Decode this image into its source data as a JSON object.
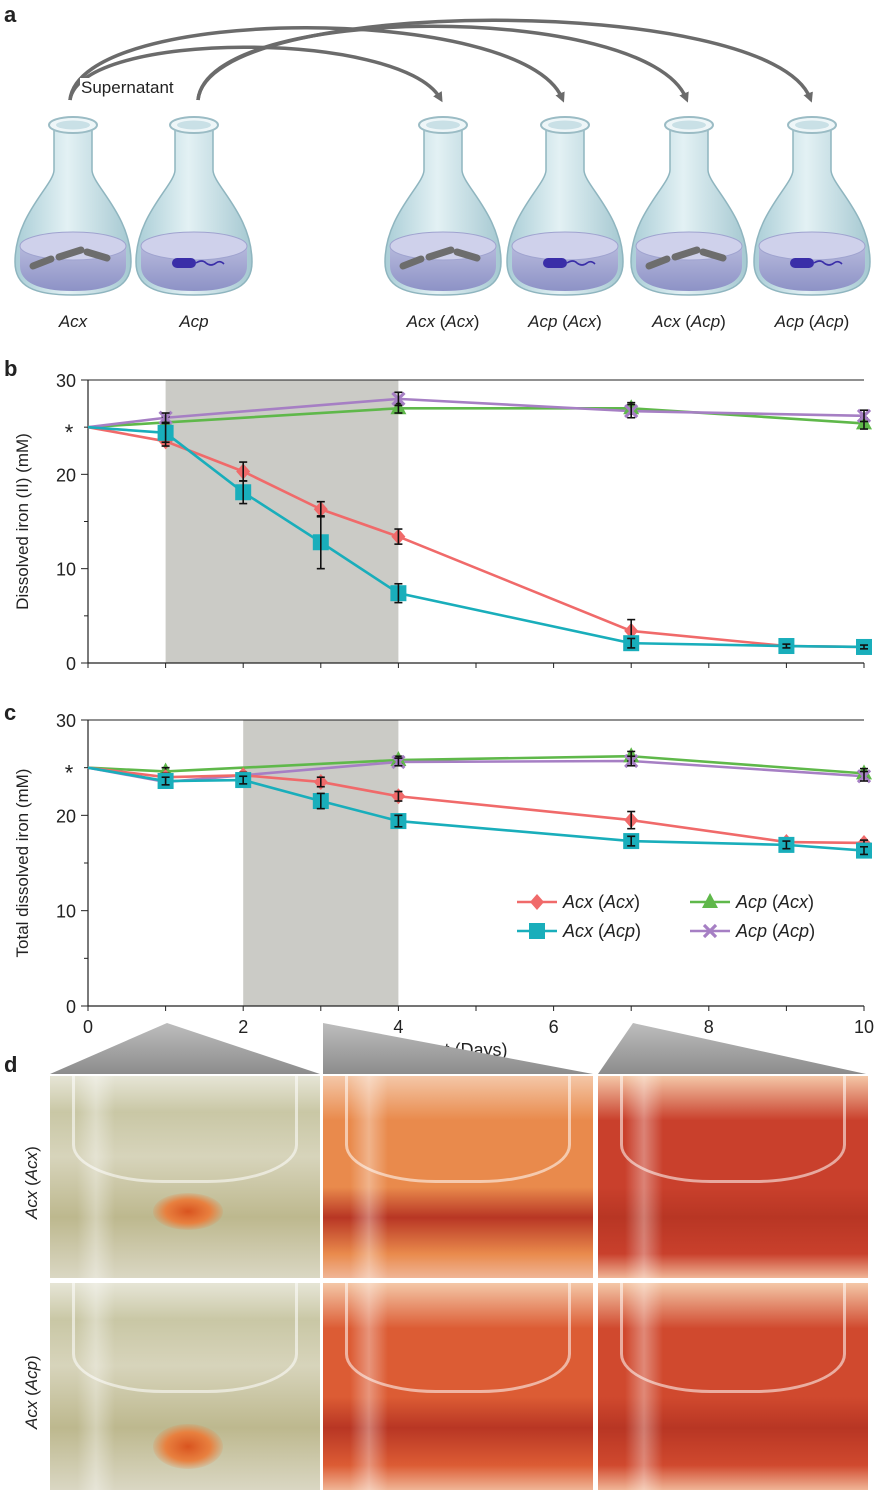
{
  "panels": {
    "a": "a",
    "b": "b",
    "c": "c",
    "d": "d"
  },
  "panel_a": {
    "supernatant_label": "Supernatant",
    "source_flasks": [
      {
        "label": "Acx",
        "cells": "rod"
      },
      {
        "label": "Acp",
        "cells": "spirillum"
      }
    ],
    "target_flasks": [
      {
        "main": "Acx",
        "paren": "Acx",
        "cells": "rod"
      },
      {
        "main": "Acp",
        "paren": "Acx",
        "cells": "spirillum"
      },
      {
        "main": "Acx",
        "paren": "Acp",
        "cells": "rod"
      },
      {
        "main": "Acp",
        "paren": "Acp",
        "cells": "spirillum"
      }
    ]
  },
  "panel_d": {
    "row_labels": [
      {
        "main": "Acx",
        "paren": "Acx"
      },
      {
        "main": "Acx",
        "paren": "Acp"
      }
    ],
    "photo_tints": [
      [
        "#cfc9a6",
        "#e98a4c",
        "#c9402c"
      ],
      [
        "#cfcaa8",
        "#dc5c34",
        "#d0492e"
      ]
    ]
  },
  "chart_data": [
    {
      "type": "line",
      "panel": "b",
      "ylabel": "Dissolved iron (II) (mM)",
      "ylim": [
        0,
        30
      ],
      "yticks": [
        "0",
        "10",
        "20",
        "30"
      ],
      "xlim": [
        0,
        10
      ],
      "shaded_region": [
        1,
        4
      ],
      "initial_marker": "*",
      "series": [
        {
          "name": "Acx (Acx)",
          "color": "#f06a6a",
          "marker": "diamond",
          "x": [
            0,
            1,
            2,
            3,
            4,
            7,
            9,
            10
          ],
          "y": [
            25.0,
            23.5,
            20.3,
            16.3,
            13.4,
            3.4,
            1.8,
            1.7
          ],
          "err": [
            0,
            0.5,
            1.0,
            0.8,
            0.8,
            1.2,
            0.3,
            0.2
          ]
        },
        {
          "name": "Acx (Acp)",
          "color": "#19aebb",
          "marker": "square",
          "x": [
            0,
            1,
            2,
            3,
            4,
            7,
            9,
            10
          ],
          "y": [
            25.0,
            24.4,
            18.1,
            12.8,
            7.4,
            2.1,
            1.8,
            1.7
          ],
          "err": [
            0,
            1.0,
            1.2,
            2.8,
            1.0,
            0.5,
            0.2,
            0.2
          ]
        },
        {
          "name": "Acp (Acx)",
          "color": "#5fb84a",
          "marker": "triangle",
          "x": [
            0,
            1,
            4,
            7,
            10
          ],
          "y": [
            25.0,
            25.5,
            27.0,
            27.0,
            25.4
          ],
          "err": [
            0,
            0.6,
            0.5,
            0.6,
            0.6
          ]
        },
        {
          "name": "Acp (Acp)",
          "color": "#a67fc4",
          "marker": "x",
          "x": [
            0,
            1,
            4,
            7,
            10
          ],
          "y": [
            25.0,
            26.0,
            28.0,
            26.7,
            26.2
          ],
          "err": [
            0,
            0.5,
            0.7,
            0.7,
            0.6
          ]
        }
      ]
    },
    {
      "type": "line",
      "panel": "c",
      "ylabel": "Total dissolved iron (mM)",
      "xlabel": "t (Days)",
      "ylim": [
        0,
        30
      ],
      "yticks": [
        "0",
        "10",
        "20",
        "30"
      ],
      "xlim": [
        0,
        10
      ],
      "xticks": [
        "0",
        "2",
        "4",
        "6",
        "8",
        "10"
      ],
      "shaded_region": [
        2,
        4
      ],
      "initial_marker": "*",
      "legend_position": "bottom-right",
      "series": [
        {
          "name": "Acx (Acx)",
          "color": "#f06a6a",
          "marker": "diamond",
          "x": [
            0,
            1,
            2,
            3,
            4,
            7,
            9,
            10
          ],
          "y": [
            25.0,
            24.0,
            24.2,
            23.5,
            22.0,
            19.5,
            17.2,
            17.1
          ],
          "err": [
            0,
            0.4,
            0.3,
            0.5,
            0.5,
            0.9,
            0.3,
            0.3
          ]
        },
        {
          "name": "Acx (Acp)",
          "color": "#19aebb",
          "marker": "square",
          "x": [
            0,
            1,
            2,
            3,
            4,
            7,
            9,
            10
          ],
          "y": [
            25.0,
            23.6,
            23.7,
            21.5,
            19.4,
            17.3,
            16.9,
            16.3
          ],
          "err": [
            0,
            0.4,
            0.4,
            0.8,
            0.6,
            0.5,
            0.4,
            0.4
          ]
        },
        {
          "name": "Acp (Acx)",
          "color": "#5fb84a",
          "marker": "triangle",
          "x": [
            0,
            1,
            4,
            7,
            10
          ],
          "y": [
            25.0,
            24.6,
            25.8,
            26.2,
            24.4
          ],
          "err": [
            0,
            0.4,
            0.4,
            0.5,
            0.5
          ]
        },
        {
          "name": "Acp (Acp)",
          "color": "#a67fc4",
          "marker": "x",
          "x": [
            0,
            1,
            4,
            7,
            10
          ],
          "y": [
            25.0,
            23.5,
            25.6,
            25.7,
            24.1
          ],
          "err": [
            0,
            0.4,
            0.4,
            0.5,
            0.5
          ]
        }
      ]
    }
  ]
}
